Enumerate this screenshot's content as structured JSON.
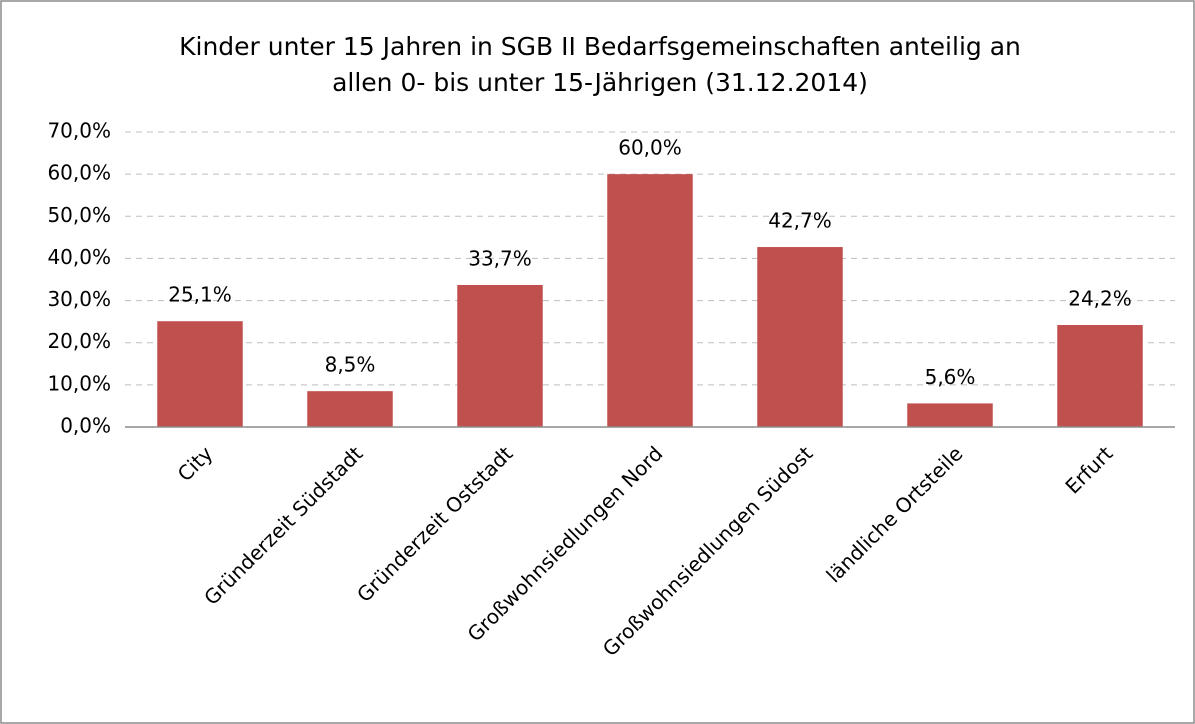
{
  "chart_data": {
    "type": "bar",
    "title": [
      "Kinder unter 15 Jahren in SGB II Bedarfsgemeinschaften anteilig an",
      "allen 0- bis unter 15-Jährigen (31.12.2014)"
    ],
    "categories": [
      "City",
      "Gründerzeit Südstadt",
      "Gründerzeit Oststadt",
      "Großwohnsiedlungen Nord",
      "Großwohnsiedlungen Südost",
      "ländliche Ortsteile",
      "Erfurt"
    ],
    "values": [
      25.1,
      8.5,
      33.7,
      60.0,
      42.7,
      5.6,
      24.2
    ],
    "value_labels": [
      "25,1%",
      "8,5%",
      "33,7%",
      "60,0%",
      "42,7%",
      "5,6%",
      "24,2%"
    ],
    "color": "#c0504d",
    "ylim": [
      0,
      70
    ],
    "yticks": [
      {
        "value": 0,
        "label": "0,0%"
      },
      {
        "value": 10,
        "label": "10,0%"
      },
      {
        "value": 20,
        "label": "20,0%"
      },
      {
        "value": 30,
        "label": "30,0%"
      },
      {
        "value": 40,
        "label": "40,0%"
      },
      {
        "value": 50,
        "label": "50,0%"
      },
      {
        "value": 60,
        "label": "60,0%"
      },
      {
        "value": 70,
        "label": "70,0%"
      }
    ],
    "grid": true
  }
}
